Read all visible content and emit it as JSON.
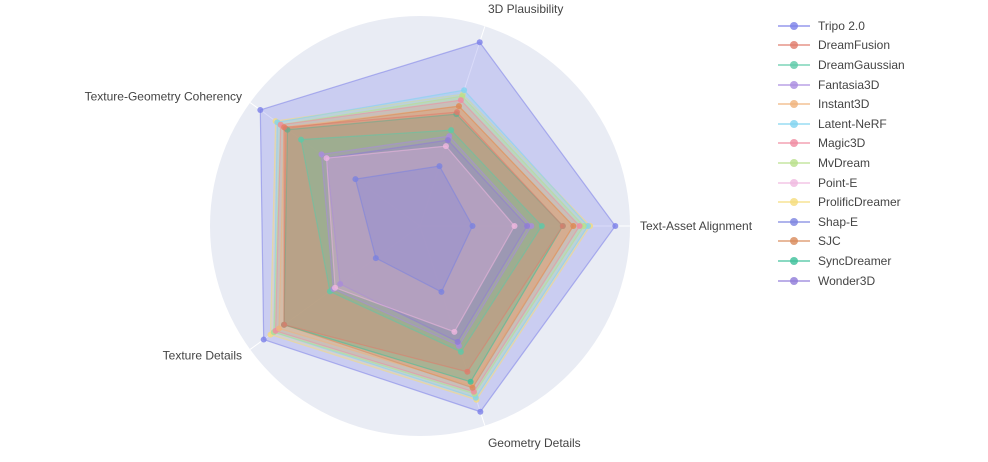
{
  "chart_data": {
    "type": "radar",
    "axes": [
      "3D Plausibility",
      "Text-Asset Alignment",
      "Geometry Details",
      "Texture Details",
      "Texture-Geometry Coherency"
    ],
    "range": [
      0,
      1
    ],
    "grid": "circular",
    "legend_position": "right",
    "series": [
      {
        "name": "Tripo 2.0",
        "color": "#7b7fe8",
        "values": [
          0.92,
          0.93,
          0.93,
          0.92,
          0.94
        ]
      },
      {
        "name": "DreamFusion",
        "color": "#e07a6a",
        "values": [
          0.57,
          0.68,
          0.73,
          0.8,
          0.8
        ]
      },
      {
        "name": "DreamGaussian",
        "color": "#5cc9a7",
        "values": [
          0.48,
          0.58,
          0.63,
          0.53,
          0.7
        ]
      },
      {
        "name": "Fantasia3D",
        "color": "#a98be0",
        "values": [
          0.45,
          0.53,
          0.6,
          0.51,
          0.58
        ]
      },
      {
        "name": "Instant3D",
        "color": "#f0b27a",
        "values": [
          0.6,
          0.73,
          0.8,
          0.83,
          0.8
        ]
      },
      {
        "name": "Latent-NeRF",
        "color": "#7fd3f0",
        "values": [
          0.68,
          0.8,
          0.86,
          0.86,
          0.84
        ]
      },
      {
        "name": "Magic3D",
        "color": "#f08aa0",
        "values": [
          0.63,
          0.76,
          0.83,
          0.85,
          0.82
        ]
      },
      {
        "name": "MvDream",
        "color": "#b8e08a",
        "values": [
          0.65,
          0.78,
          0.84,
          0.86,
          0.82
        ]
      },
      {
        "name": "Point-E",
        "color": "#f0b8e0",
        "values": [
          0.4,
          0.45,
          0.53,
          0.5,
          0.55
        ]
      },
      {
        "name": "ProlificDreamer",
        "color": "#f5dc7a",
        "values": [
          0.66,
          0.81,
          0.87,
          0.88,
          0.85
        ]
      },
      {
        "name": "Shap-E",
        "color": "#7a82e0",
        "values": [
          0.3,
          0.25,
          0.33,
          0.26,
          0.38
        ]
      },
      {
        "name": "SJC",
        "color": "#d88a5a",
        "values": [
          0.6,
          0.73,
          0.81,
          0.8,
          0.79
        ]
      },
      {
        "name": "SyncDreamer",
        "color": "#3cbf9a",
        "values": [
          0.56,
          0.68,
          0.78,
          0.8,
          0.78
        ]
      },
      {
        "name": "Wonder3D",
        "color": "#8f7ad8",
        "values": [
          0.43,
          0.51,
          0.58,
          0.47,
          0.55
        ]
      }
    ]
  }
}
